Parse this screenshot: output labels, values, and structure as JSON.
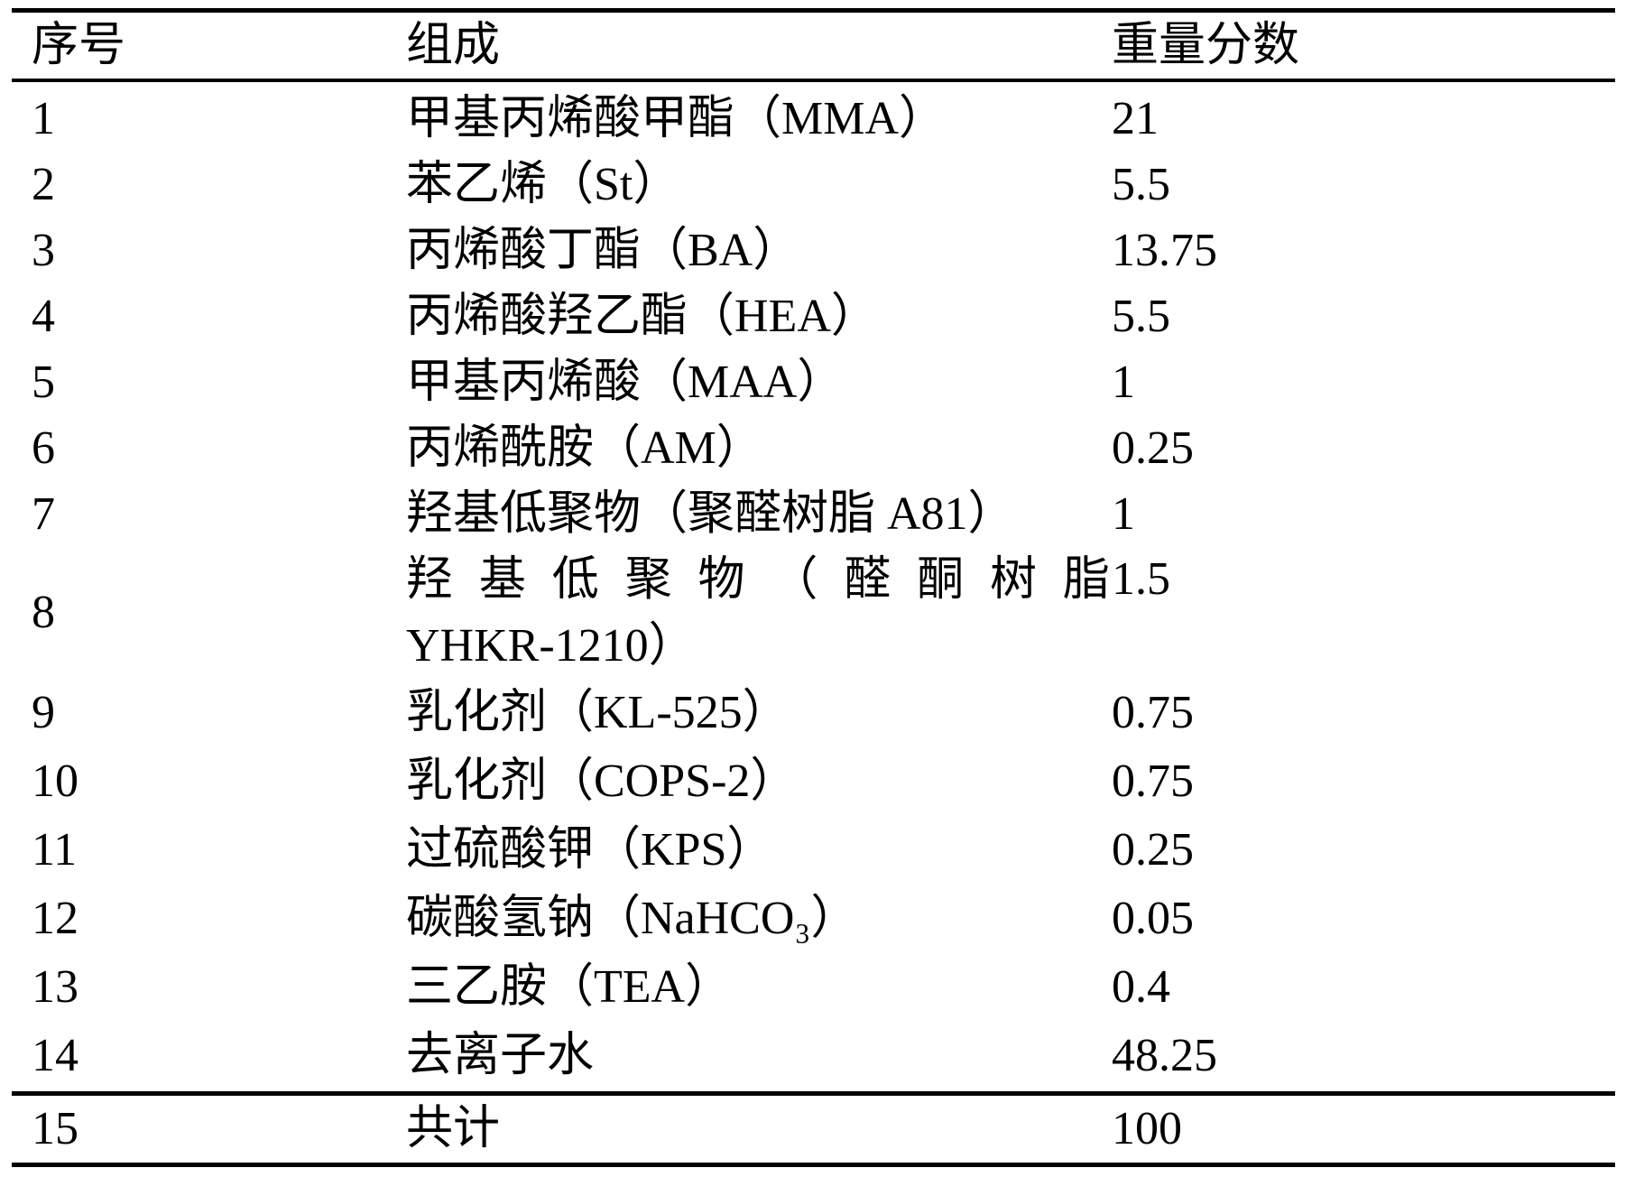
{
  "table": {
    "columns": {
      "no": "序号",
      "composition": "组成",
      "weight": "重量分数"
    },
    "rows": [
      {
        "no": "1",
        "composition": "甲基丙烯酸甲酯（MMA）",
        "weight": "21"
      },
      {
        "no": "2",
        "composition": "苯乙烯（St）",
        "weight": "5.5"
      },
      {
        "no": "3",
        "composition": "丙烯酸丁酯（BA）",
        "weight": "13.75"
      },
      {
        "no": "4",
        "composition": "丙烯酸羟乙酯（HEA）",
        "weight": "5.5"
      },
      {
        "no": "5",
        "composition": "甲基丙烯酸（MAA）",
        "weight": "1"
      },
      {
        "no": "6",
        "composition": "丙烯酰胺（AM）",
        "weight": "0.25"
      },
      {
        "no": "7",
        "composition": "羟基低聚物（聚醛树脂 A81）",
        "weight": "1"
      },
      {
        "no": "8",
        "composition_line1": "羟基低聚物（醛酮树脂",
        "composition_line2": "YHKR-1210）",
        "weight": "1.5"
      },
      {
        "no": "9",
        "composition": "乳化剂（KL-525）",
        "weight": "0.75"
      },
      {
        "no": "10",
        "composition": "乳化剂（COPS-2）",
        "weight": "0.75"
      },
      {
        "no": "11",
        "composition": "过硫酸钾（KPS）",
        "weight": "0.25"
      },
      {
        "no": "12",
        "composition": "碳酸氢钠（NaHCO₃）",
        "weight": "0.05"
      },
      {
        "no": "13",
        "composition": "三乙胺（TEA）",
        "weight": "0.4"
      },
      {
        "no": "14",
        "composition": "去离子水",
        "weight": "48.25"
      },
      {
        "no": "15",
        "composition": "共计",
        "weight": "100"
      }
    ],
    "colors": {
      "ink": "#000000",
      "paper": "#ffffff"
    }
  }
}
